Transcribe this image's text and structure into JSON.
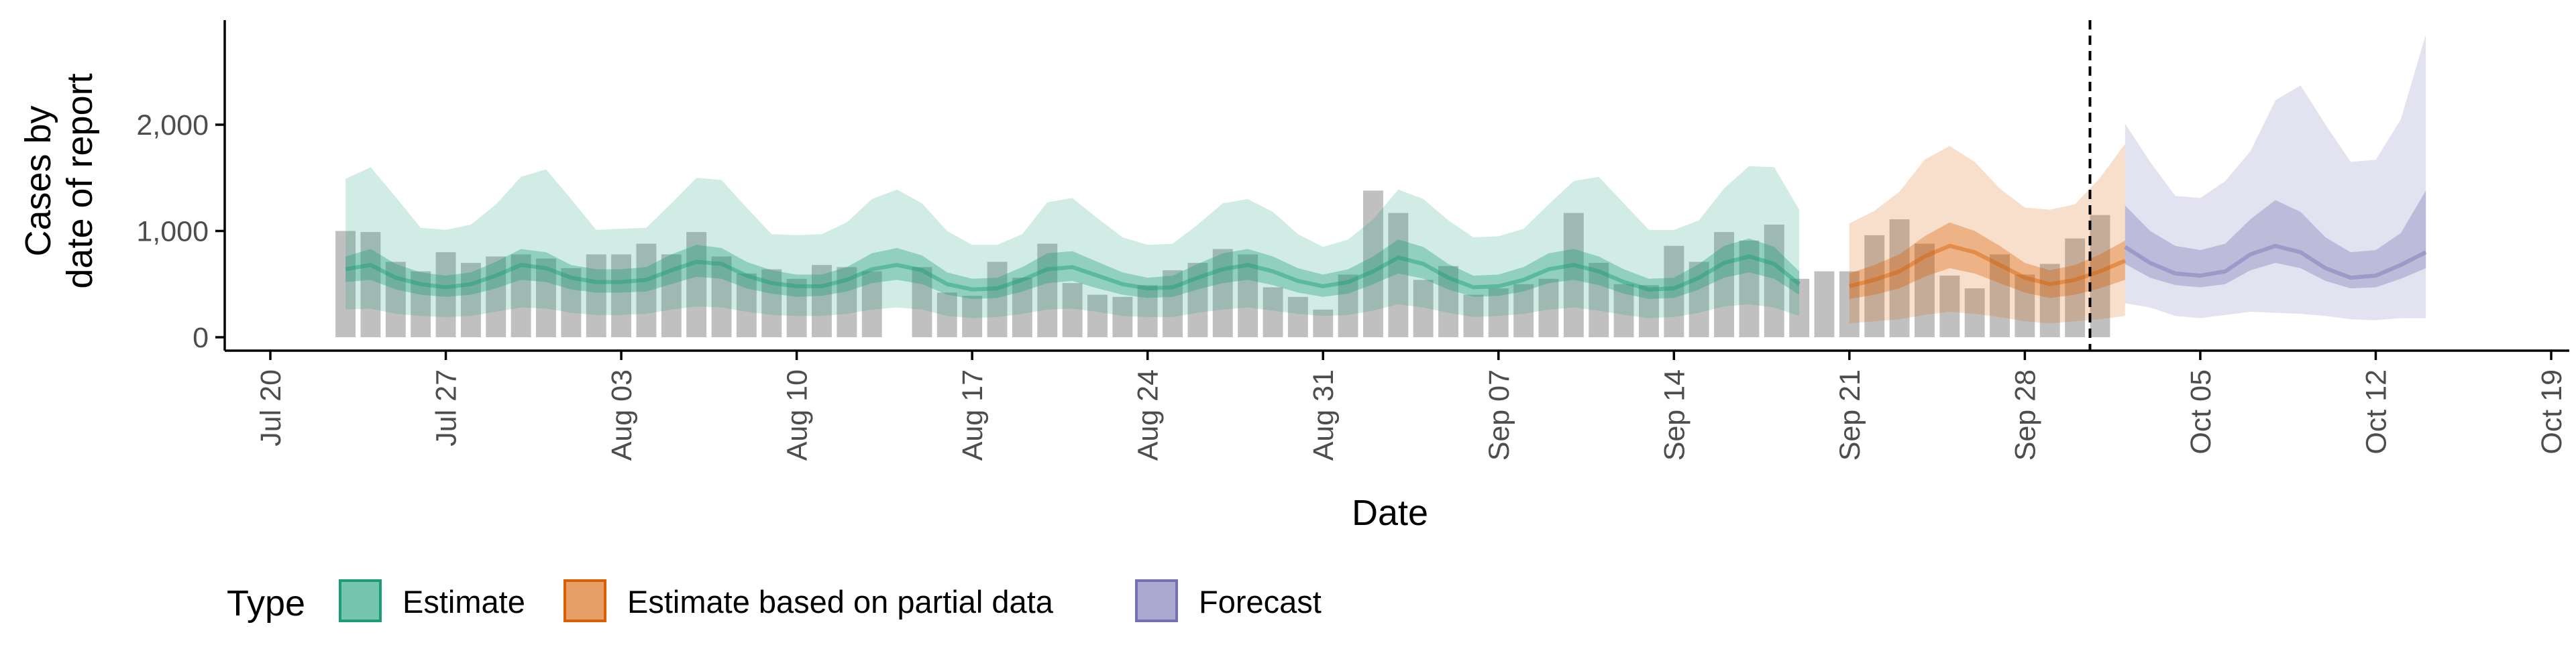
{
  "chart_data": {
    "type": "area",
    "title": "",
    "xlabel": "Date",
    "ylabel": [
      "Cases by",
      "date of report"
    ],
    "ylim": [
      0,
      2900
    ],
    "yticks": [
      {
        "value": 0,
        "label": "0"
      },
      {
        "value": 1000,
        "label": "1,000"
      },
      {
        "value": 2000,
        "label": "2,000"
      }
    ],
    "xlim": [
      "2020-07-17",
      "2020-10-19"
    ],
    "xticks": [
      {
        "date": "2020-07-20",
        "label": "Jul 20"
      },
      {
        "date": "2020-07-27",
        "label": "Jul 27"
      },
      {
        "date": "2020-08-03",
        "label": "Aug 03"
      },
      {
        "date": "2020-08-10",
        "label": "Aug 10"
      },
      {
        "date": "2020-08-17",
        "label": "Aug 17"
      },
      {
        "date": "2020-08-24",
        "label": "Aug 24"
      },
      {
        "date": "2020-08-31",
        "label": "Aug 31"
      },
      {
        "date": "2020-09-07",
        "label": "Sep 07"
      },
      {
        "date": "2020-09-14",
        "label": "Sep 14"
      },
      {
        "date": "2020-09-21",
        "label": "Sep 21"
      },
      {
        "date": "2020-09-28",
        "label": "Sep 28"
      },
      {
        "date": "2020-10-05",
        "label": "Oct 05"
      },
      {
        "date": "2020-10-12",
        "label": "Oct 12"
      },
      {
        "date": "2020-10-19",
        "label": "Oct 19"
      }
    ],
    "grid": false,
    "legend": {
      "position": "bottom-left",
      "title": "Type",
      "entries": [
        {
          "name": "Estimate",
          "fill": "#1b9e77",
          "stroke": "#1b9e77"
        },
        {
          "name": "Estimate based on partial data",
          "fill": "#d95f02",
          "stroke": "#d95f02"
        },
        {
          "name": "Forecast",
          "fill": "#7570b3",
          "stroke": "#7570b3"
        }
      ]
    },
    "vline_date": "2020-10-01",
    "bar_color": "#8c8c8c",
    "reported_cases": {
      "start_date": "2020-07-23",
      "values": [
        1000,
        990,
        710,
        620,
        800,
        700,
        760,
        780,
        740,
        650,
        780,
        780,
        880,
        780,
        990,
        760,
        600,
        640,
        550,
        680,
        660,
        620,
        0,
        660,
        420,
        390,
        710,
        560,
        880,
        510,
        400,
        380,
        490,
        630,
        700,
        830,
        780,
        470,
        380,
        260,
        590,
        1380,
        1170,
        540,
        670,
        400,
        460,
        500,
        550,
        1170,
        700,
        500,
        490,
        860,
        710,
        990,
        910,
        1060,
        550,
        620,
        620,
        960,
        1110,
        880,
        580,
        460,
        780,
        590,
        690,
        930,
        1150
      ]
    },
    "series": [
      {
        "name": "Estimate",
        "color": "#1b9e77",
        "start_date": "2020-07-23",
        "median": [
          640,
          680,
          560,
          500,
          470,
          500,
          580,
          680,
          650,
          560,
          520,
          520,
          540,
          630,
          710,
          690,
          580,
          510,
          480,
          480,
          540,
          640,
          680,
          630,
          500,
          450,
          460,
          540,
          640,
          660,
          580,
          500,
          460,
          470,
          560,
          640,
          680,
          620,
          530,
          480,
          520,
          620,
          750,
          690,
          560,
          470,
          480,
          540,
          640,
          680,
          620,
          520,
          450,
          460,
          560,
          700,
          760,
          690,
          500
        ],
        "inner": [
          [
            520,
            540,
            450,
            400,
            380,
            400,
            460,
            540,
            520,
            450,
            420,
            420,
            430,
            500,
            570,
            550,
            460,
            410,
            380,
            390,
            430,
            510,
            540,
            500,
            400,
            360,
            370,
            430,
            510,
            530,
            460,
            400,
            370,
            380,
            450,
            510,
            540,
            490,
            420,
            380,
            410,
            500,
            600,
            550,
            450,
            380,
            390,
            430,
            510,
            540,
            490,
            410,
            360,
            370,
            450,
            560,
            610,
            550,
            400
          ],
          [
            760,
            830,
            690,
            610,
            580,
            610,
            710,
            830,
            800,
            680,
            640,
            640,
            660,
            780,
            870,
            840,
            710,
            630,
            590,
            590,
            660,
            790,
            840,
            770,
            610,
            550,
            560,
            660,
            790,
            810,
            710,
            610,
            560,
            580,
            690,
            790,
            830,
            760,
            650,
            590,
            640,
            760,
            920,
            850,
            690,
            580,
            590,
            660,
            790,
            830,
            760,
            640,
            550,
            560,
            690,
            860,
            930,
            850,
            620
          ]
        ],
        "outer": [
          [
            260,
            270,
            220,
            200,
            190,
            200,
            240,
            280,
            270,
            230,
            210,
            210,
            220,
            260,
            290,
            280,
            240,
            210,
            200,
            200,
            220,
            260,
            280,
            260,
            200,
            180,
            190,
            220,
            260,
            270,
            240,
            200,
            190,
            190,
            230,
            260,
            280,
            250,
            220,
            200,
            210,
            250,
            310,
            280,
            230,
            190,
            200,
            220,
            260,
            280,
            250,
            210,
            180,
            190,
            230,
            290,
            310,
            280,
            200
          ],
          [
            1490,
            1600,
            1320,
            1030,
            1010,
            1060,
            1250,
            1510,
            1580,
            1300,
            1010,
            1020,
            1030,
            1260,
            1500,
            1480,
            1220,
            970,
            960,
            970,
            1080,
            1300,
            1390,
            1260,
            1000,
            870,
            870,
            970,
            1270,
            1310,
            1120,
            940,
            870,
            880,
            1060,
            1260,
            1300,
            1180,
            970,
            850,
            920,
            1110,
            1390,
            1300,
            1100,
            940,
            950,
            1020,
            1250,
            1470,
            1510,
            1260,
            1010,
            1010,
            1100,
            1400,
            1610,
            1600,
            1200
          ]
        ]
      },
      {
        "name": "Estimate based on partial data",
        "color": "#d95f02",
        "start_date": "2020-09-21",
        "median": [
          480,
          540,
          620,
          760,
          860,
          800,
          680,
          560,
          500,
          540,
          620,
          720
        ],
        "inner": [
          [
            360,
            400,
            460,
            570,
            650,
            600,
            510,
            420,
            370,
            400,
            460,
            540
          ],
          [
            600,
            680,
            780,
            950,
            1080,
            1000,
            860,
            700,
            630,
            680,
            780,
            910
          ]
        ],
        "outer": [
          [
            130,
            150,
            170,
            210,
            240,
            220,
            190,
            150,
            130,
            150,
            170,
            200
          ],
          [
            1070,
            1190,
            1370,
            1670,
            1800,
            1650,
            1400,
            1220,
            1200,
            1250,
            1500,
            1820
          ]
        ]
      },
      {
        "name": "Forecast",
        "color": "#7570b3",
        "start_date": "2020-10-02",
        "median": [
          850,
          700,
          600,
          580,
          620,
          780,
          860,
          800,
          650,
          560,
          580,
          680,
          800
        ],
        "inner": [
          [
            690,
            560,
            490,
            470,
            500,
            630,
            700,
            650,
            530,
            460,
            470,
            550,
            650
          ],
          [
            1240,
            1000,
            860,
            820,
            880,
            1110,
            1290,
            1180,
            940,
            800,
            820,
            980,
            1380
          ]
        ],
        "outer": [
          [
            320,
            280,
            200,
            180,
            210,
            240,
            230,
            220,
            200,
            170,
            160,
            180,
            180
          ],
          [
            2010,
            1650,
            1330,
            1310,
            1470,
            1750,
            2230,
            2370,
            2000,
            1650,
            1670,
            2050,
            2850
          ]
        ]
      }
    ]
  }
}
